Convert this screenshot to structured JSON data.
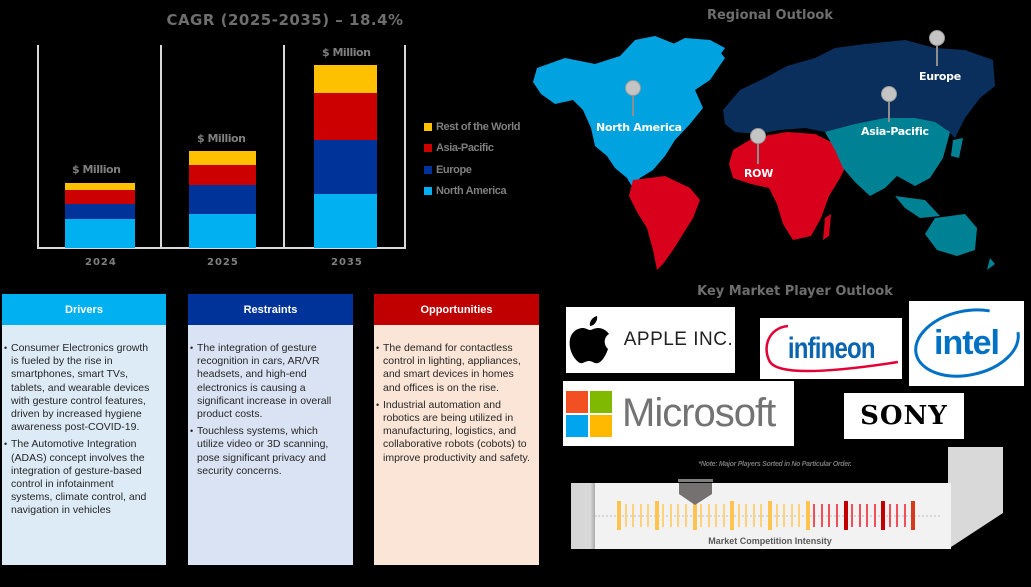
{
  "chart_data": {
    "type": "bar",
    "stacked": true,
    "title": "CAGR (2025-2035) – 18.4%",
    "categories": [
      "2024",
      "2025",
      "2035"
    ],
    "bar_labels": [
      "$ Million",
      "$ Million",
      "$ Million"
    ],
    "series": [
      {
        "name": "North America",
        "color": "#00B0F0",
        "values": [
          29,
          34,
          54
        ]
      },
      {
        "name": "Europe",
        "color": "#003399",
        "values": [
          15,
          29,
          54
        ]
      },
      {
        "name": "Asia-Pacific",
        "color": "#CC0000",
        "values": [
          14,
          20,
          47
        ]
      },
      {
        "name": "Rest of the World",
        "color": "#FFC000",
        "values": [
          7,
          14,
          28
        ]
      }
    ],
    "legend_order": [
      "Rest of the World",
      "Asia-Pacific",
      "Europe",
      "North America"
    ],
    "xlabel": "",
    "ylabel": "",
    "units": "relative (no axis values shown)",
    "grid": false,
    "legend_position": "right"
  },
  "map": {
    "title": "Regional Outlook",
    "regions": [
      {
        "name": "North America",
        "color": "#00A3E0"
      },
      {
        "name": "Europe",
        "color": "#0A2F5C"
      },
      {
        "name": "Asia-Pacific",
        "color": "#008295"
      },
      {
        "name": "ROW",
        "color": "#D9001B"
      }
    ]
  },
  "boxes": {
    "drivers": {
      "title": "Drivers",
      "header_color": "#00B0F0",
      "body_color": "#DDEBF7",
      "items": [
        "Consumer Electronics growth is fueled by the rise in smartphones, smart TVs, tablets, and wearable devices with gesture control features, driven by increased hygiene awareness post-COVID-19.",
        "The Automotive Integration (ADAS) concept involves the integration of gesture-based control in infotainment systems, climate control, and navigation in vehicles"
      ]
    },
    "restraints": {
      "title": "Restraints",
      "header_color": "#003399",
      "body_color": "#DAE3F3",
      "items": [
        "The integration of gesture recognition in cars, AR/VR headsets, and high-end electronics is causing a significant increase in overall product costs.",
        "Touchless systems, which utilize video or 3D scanning, pose significant privacy and security concerns."
      ]
    },
    "opportunities": {
      "title": "Opportunities",
      "header_color": "#C00000",
      "body_color": "#FBE5D6",
      "items": [
        "The demand for contactless control in lighting, appliances, and smart devices in homes and offices is on the rise.",
        "Industrial automation and robotics are being utilized in manufacturing, logistics, and collaborative robots (cobots) to improve productivity and safety."
      ]
    }
  },
  "key_players": {
    "title": "Key Market Player Outlook",
    "logos": {
      "apple": "APPLE INC.",
      "infineon": "infineon",
      "intel": "intel",
      "microsoft": "Microsoft",
      "sony": "SONY"
    },
    "note": "*Note: Major Players Sorted in No Particular Order.",
    "intensity_label": "Market Competition Intensity"
  }
}
